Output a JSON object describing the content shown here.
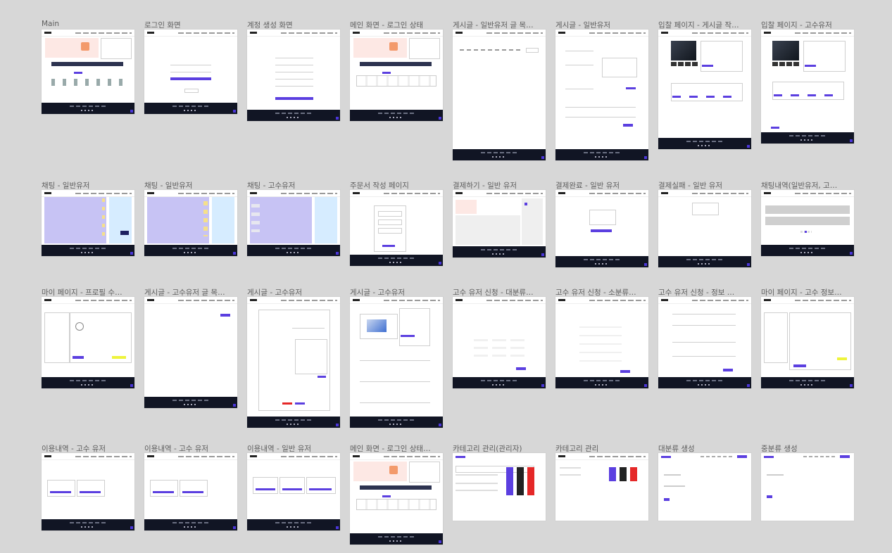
{
  "canvas": {
    "background": "#d7d7d7",
    "accent": "#5b3fe0"
  },
  "frames": [
    {
      "id": "main",
      "label": "Main"
    },
    {
      "id": "login",
      "label": "로그인 화면"
    },
    {
      "id": "signup",
      "label": "계정 생성 화면"
    },
    {
      "id": "main-logged-in",
      "label": "메인 화면 - 로그인 상태"
    },
    {
      "id": "post-list-general",
      "label": "게시글 - 일반유저 글 목…"
    },
    {
      "id": "post-general",
      "label": "게시글 - 일반유저"
    },
    {
      "id": "bid-page-post",
      "label": "입찰 페이지 - 게시글 작…"
    },
    {
      "id": "bid-page-expert",
      "label": "입찰 페이지 - 고수유저"
    },
    {
      "id": "chat-general-1",
      "label": "채팅 - 일반유저"
    },
    {
      "id": "chat-general-2",
      "label": "채팅 - 일반유저"
    },
    {
      "id": "chat-expert",
      "label": "채팅 - 고수유저"
    },
    {
      "id": "order-form",
      "label": "주문서 작성 페이지"
    },
    {
      "id": "payment",
      "label": "결제하기 - 일반 유저"
    },
    {
      "id": "payment-complete",
      "label": "결제완료 - 일반 유저"
    },
    {
      "id": "payment-failed",
      "label": "결제실패 - 일반 유저"
    },
    {
      "id": "chat-history",
      "label": "채팅내역(일반유저, 고…"
    },
    {
      "id": "mypage-profile",
      "label": "마이 페이지 - 프로필 수…"
    },
    {
      "id": "post-list-expert",
      "label": "게시글 - 고수유저 글 목…"
    },
    {
      "id": "post-expert-1",
      "label": "게시글 - 고수유저"
    },
    {
      "id": "post-expert-2",
      "label": "게시글 - 고수유저"
    },
    {
      "id": "expert-apply-major",
      "label": "고수 유저 신청 - 대분류…"
    },
    {
      "id": "expert-apply-minor",
      "label": "고수 유저 신청 - 소분류…"
    },
    {
      "id": "expert-apply-info",
      "label": "고수 유저 신청 - 정보 …"
    },
    {
      "id": "mypage-expert-info",
      "label": "마이 페이지 - 고수 정보…"
    },
    {
      "id": "usage-expert-1",
      "label": "이용내역 - 고수 유저"
    },
    {
      "id": "usage-expert-2",
      "label": "이용내역 - 고수 유저"
    },
    {
      "id": "usage-general",
      "label": "이용내역 - 일반 유저"
    },
    {
      "id": "main-logged-in-2",
      "label": "메인 화면 - 로그인 상태…"
    },
    {
      "id": "category-admin",
      "label": "카테고리 관리(관리자)"
    },
    {
      "id": "category-manage",
      "label": "카테고리 관리"
    },
    {
      "id": "major-create",
      "label": "대분류 생성"
    },
    {
      "id": "middle-create",
      "label": "중분류 생성"
    }
  ]
}
